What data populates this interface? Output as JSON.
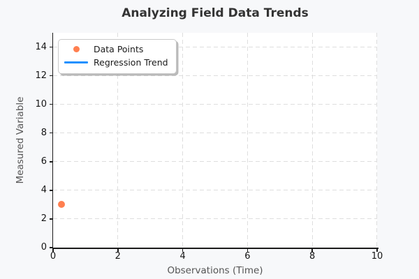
{
  "figure": {
    "title": "Analyzing Field Data Trends",
    "background_color": "#f7f8fa",
    "plot_background_color": "#ffffff"
  },
  "axes": {
    "xlabel": "Observations (Time)",
    "ylabel": "Measured Variable"
  },
  "legend": {
    "items": [
      {
        "label": "Data Points",
        "swatch": "marker",
        "color": "#ff7f50"
      },
      {
        "label": "Regression Trend",
        "swatch": "line",
        "color": "#1e90ff"
      }
    ]
  },
  "colors": {
    "title": "#333333",
    "axis_label": "#555555",
    "tick_label": "#151515",
    "grid": "#dedede",
    "spine": "#1a1a1a",
    "point": "#ff7f50",
    "trend_line": "#1e90ff"
  },
  "chart_data": {
    "type": "scatter",
    "title": "Analyzing Field Data Trends",
    "xlabel": "Observations (Time)",
    "ylabel": "Measured Variable",
    "xlim": [
      0,
      10
    ],
    "ylim": [
      0,
      15
    ],
    "xticks": [
      0,
      2,
      4,
      6,
      8,
      10
    ],
    "yticks": [
      0,
      2,
      4,
      6,
      8,
      10,
      12,
      14
    ],
    "grid": true,
    "grid_style": "dashed",
    "legend_position": "upper-left",
    "series": [
      {
        "name": "Data Points",
        "type": "scatter",
        "color": "#ff7f50",
        "points": [
          {
            "x": 0.25,
            "y": 3.0
          }
        ]
      },
      {
        "name": "Regression Trend",
        "type": "line",
        "color": "#1e90ff",
        "points": [],
        "visible_in_plot": false
      }
    ]
  }
}
